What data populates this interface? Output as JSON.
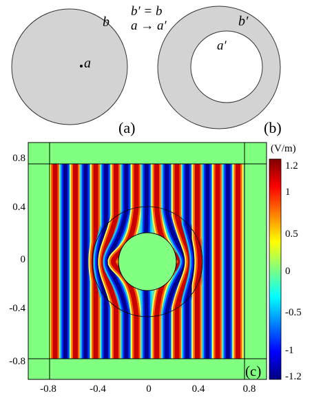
{
  "panel_a": {
    "tag": "(a)",
    "outer_label": "b",
    "center_label": "a"
  },
  "panel_b": {
    "tag": "(b)",
    "outer_label": "b′",
    "inner_label": "a′"
  },
  "mapping": {
    "line1": "b′ = b",
    "line2": "a → a′"
  },
  "panel_c": {
    "tag": "(c)",
    "colorbar_unit": "(V/m)",
    "colorbar_ticks": [
      "1.2",
      "1",
      "0.5",
      "0",
      "-0.5",
      "-1",
      "-1.2"
    ],
    "y_ticks": [
      "0.8",
      "0.4",
      "0",
      "-0.4",
      "-0.8"
    ],
    "x_ticks": [
      "-0.8",
      "-0.4",
      "0",
      "0.4",
      "0.8"
    ]
  },
  "colors": {
    "disk_fill": "#d3d3d3",
    "pml_fill": "#80ff80",
    "field_high": "#c00000",
    "field_low": "#00008f"
  }
}
